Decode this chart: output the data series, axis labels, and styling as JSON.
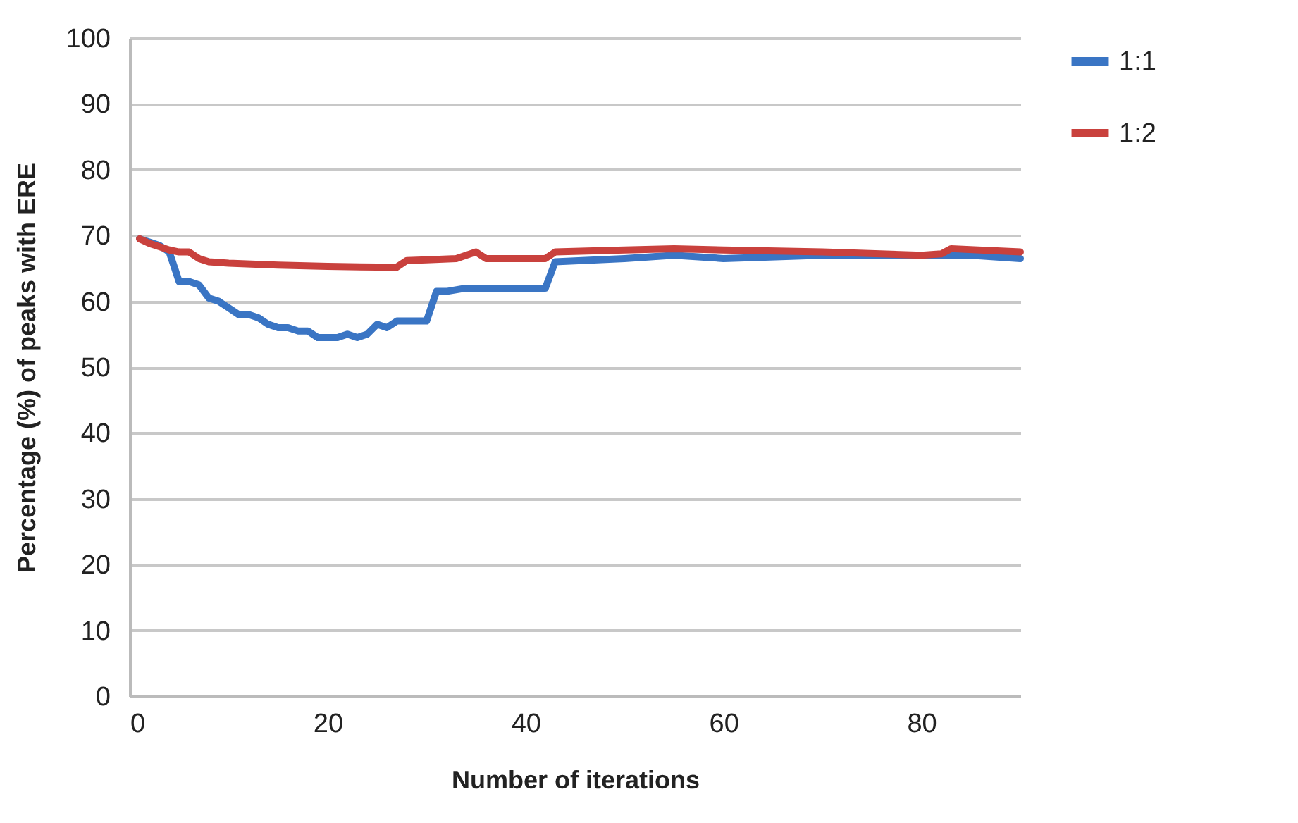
{
  "chart_data": {
    "type": "line",
    "xlabel": "Number of iterations",
    "ylabel": "Percentage (%) of peaks with ERE",
    "xlim": [
      0,
      90
    ],
    "xticks": [
      0,
      20,
      40,
      60,
      80
    ],
    "ylim": [
      0,
      100
    ],
    "yticks": [
      0,
      10,
      20,
      30,
      40,
      50,
      60,
      70,
      80,
      90,
      100
    ],
    "grid": "y",
    "legend": "right",
    "marker": "none",
    "line_style": "solid",
    "series": [
      {
        "name": "1:1",
        "color": "#3a75c4",
        "x": [
          1,
          2,
          3,
          4,
          5,
          6,
          7,
          8,
          9,
          10,
          11,
          12,
          13,
          14,
          15,
          16,
          17,
          18,
          19,
          20,
          21,
          22,
          23,
          24,
          25,
          26,
          27,
          28,
          29,
          30,
          31,
          32,
          34,
          42,
          43,
          50,
          55,
          60,
          70,
          80,
          85,
          90
        ],
        "values": [
          69.5,
          69,
          68.5,
          67.5,
          63,
          63,
          62.5,
          60.5,
          60,
          59,
          58,
          58,
          57.5,
          56.5,
          56,
          56,
          55.5,
          55.5,
          54.5,
          54.5,
          54.5,
          55,
          54.5,
          55,
          56.5,
          56,
          57,
          57,
          57,
          57,
          61.5,
          61.5,
          62,
          62,
          66,
          66.5,
          67,
          66.5,
          67,
          67,
          67,
          66.5
        ]
      },
      {
        "name": "1:2",
        "color": "#c9413d",
        "x": [
          1,
          2,
          3,
          4,
          5,
          6,
          7,
          8,
          10,
          15,
          20,
          25,
          27,
          28,
          30,
          33,
          35,
          36,
          42,
          43,
          50,
          55,
          60,
          70,
          80,
          82,
          83,
          90
        ],
        "values": [
          69.5,
          68.8,
          68.3,
          67.8,
          67.5,
          67.5,
          66.5,
          66,
          65.8,
          65.5,
          65.3,
          65.2,
          65.2,
          66.2,
          66.3,
          66.5,
          67.5,
          66.5,
          66.5,
          67.5,
          67.8,
          68,
          67.8,
          67.5,
          67,
          67.2,
          68,
          67.5
        ]
      }
    ]
  }
}
